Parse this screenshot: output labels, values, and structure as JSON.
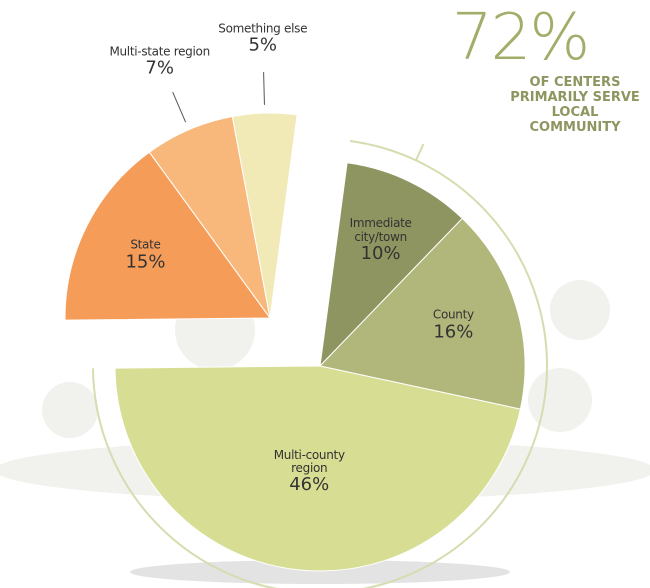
{
  "chart_data": {
    "type": "pie",
    "categories": [
      "Immediate city/town",
      "County",
      "Multi-county region",
      "State",
      "Multi-state region",
      "Something else"
    ],
    "values": [
      10,
      16,
      46,
      15,
      7,
      5
    ],
    "value_labels": [
      "10%",
      "16%",
      "46%",
      "15%",
      "7%",
      "5%"
    ],
    "colors": [
      "#8f9560",
      "#b1b77b",
      "#d7dd92",
      "#f59d58",
      "#f8b87b",
      "#f1e9b6"
    ],
    "annotations": [
      {
        "text": "72%"
      },
      {
        "text": "OF CENTERS PRIMARILY SERVE LOCAL COMMUNITY"
      }
    ]
  }
}
